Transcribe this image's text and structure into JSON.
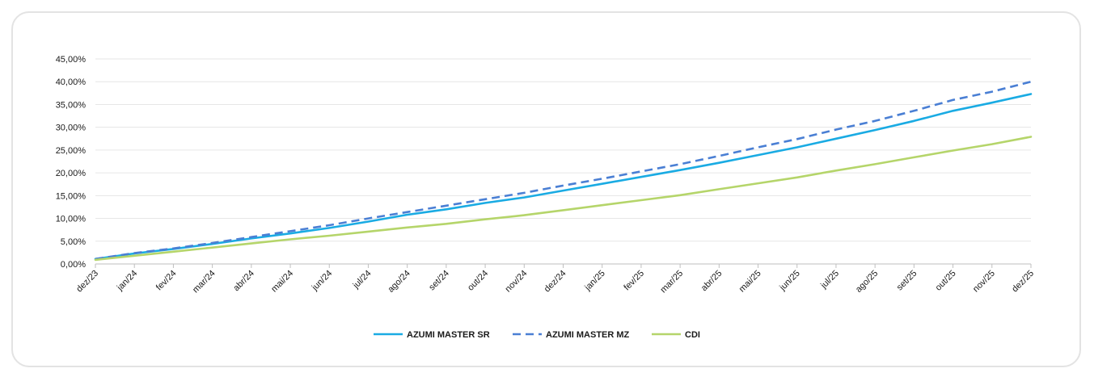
{
  "chart_data": {
    "type": "line",
    "title": "",
    "xlabel": "",
    "ylabel": "",
    "ylim": [
      0,
      45
    ],
    "y_ticks": [
      "0,00%",
      "5,00%",
      "10,00%",
      "15,00%",
      "20,00%",
      "25,00%",
      "30,00%",
      "35,00%",
      "40,00%",
      "45,00%"
    ],
    "categories": [
      "dez/23",
      "jan/24",
      "fev/24",
      "mar/24",
      "abr/24",
      "mai/24",
      "jun/24",
      "jul/24",
      "ago/24",
      "set/24",
      "out/24",
      "nov/24",
      "dez/24",
      "jan/25",
      "fev/25",
      "mar/25",
      "abr/25",
      "mai/25",
      "jun/25",
      "jul/25",
      "ago/25",
      "set/25",
      "out/25",
      "nov/25",
      "dez/25"
    ],
    "series": [
      {
        "name": "AZUMI MASTER SR",
        "color": "#1aabe3",
        "style": "solid",
        "values": [
          1.1,
          2.3,
          3.3,
          4.4,
          5.6,
          6.7,
          7.9,
          9.3,
          10.8,
          12.0,
          13.4,
          14.6,
          16.1,
          17.6,
          19.1,
          20.6,
          22.2,
          23.9,
          25.6,
          27.5,
          29.4,
          31.4,
          33.6,
          35.4,
          37.3
        ]
      },
      {
        "name": "AZUMI MASTER MZ",
        "color": "#4a7fd4",
        "style": "dashed",
        "values": [
          1.1,
          2.4,
          3.4,
          4.6,
          5.9,
          7.2,
          8.5,
          10.0,
          11.4,
          12.8,
          14.2,
          15.6,
          17.2,
          18.7,
          20.3,
          21.9,
          23.7,
          25.6,
          27.4,
          29.5,
          31.4,
          33.6,
          36.0,
          37.8,
          40.0
        ]
      },
      {
        "name": "CDI",
        "color": "#b5d56a",
        "style": "solid",
        "values": [
          0.9,
          1.8,
          2.7,
          3.6,
          4.5,
          5.4,
          6.2,
          7.1,
          8.0,
          8.8,
          9.8,
          10.7,
          11.8,
          12.9,
          14.0,
          15.1,
          16.4,
          17.7,
          19.0,
          20.5,
          21.9,
          23.4,
          24.9,
          26.3,
          27.9
        ]
      }
    ],
    "grid": true,
    "legend": "bottom-center"
  }
}
